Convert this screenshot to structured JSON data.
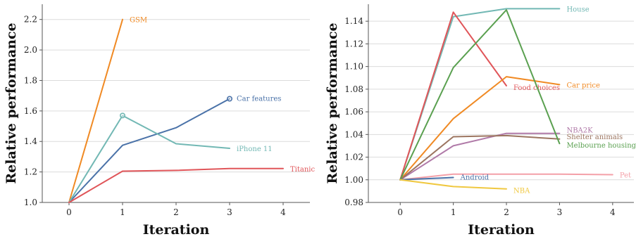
{
  "chart_data": [
    {
      "type": "line",
      "xlabel": "Iteration",
      "ylabel": "Relative performance",
      "xlim": [
        -0.5,
        4.5
      ],
      "ylim": [
        1.0,
        2.3
      ],
      "xticks": [
        0,
        1,
        2,
        3,
        4
      ],
      "yticks": [
        1.0,
        1.2,
        1.4,
        1.6,
        1.8,
        2.0,
        2.2
      ],
      "ytick_format": 1,
      "grid": "horizontal",
      "series": [
        {
          "name": "GSM",
          "color": "#f08a24",
          "x": [
            0,
            1
          ],
          "y": [
            1.0,
            2.2
          ]
        },
        {
          "name": "Car features",
          "color": "#4a72a8",
          "x": [
            0,
            1,
            2,
            3
          ],
          "y": [
            1.0,
            1.375,
            1.49,
            1.68
          ],
          "marker_last": true
        },
        {
          "name": "iPhone 11",
          "color": "#72b8b4",
          "x": [
            0,
            1,
            2,
            3
          ],
          "y": [
            1.0,
            1.57,
            1.385,
            1.355
          ],
          "marker_at": 1
        },
        {
          "name": "Titanic",
          "color": "#e05559",
          "x": [
            0,
            1,
            2,
            3,
            4
          ],
          "y": [
            1.0,
            1.205,
            1.21,
            1.222,
            1.222
          ]
        }
      ]
    },
    {
      "type": "line",
      "xlabel": "Iteration",
      "ylabel": "Relative performance",
      "xlim": [
        -0.6,
        4.4
      ],
      "ylim": [
        0.98,
        1.155
      ],
      "xticks": [
        0,
        1,
        2,
        3,
        4
      ],
      "yticks": [
        0.98,
        1.0,
        1.02,
        1.04,
        1.06,
        1.08,
        1.1,
        1.12,
        1.14
      ],
      "ytick_format": 2,
      "grid": "horizontal",
      "series": [
        {
          "name": "House",
          "color": "#72b8b4",
          "x": [
            0,
            1,
            2,
            3
          ],
          "y": [
            1.0,
            1.144,
            1.151,
            1.151
          ]
        },
        {
          "name": "Food choices",
          "color": "#e05559",
          "x": [
            0,
            1,
            2
          ],
          "y": [
            1.0,
            1.148,
            1.083
          ]
        },
        {
          "name": "Car price",
          "color": "#f08a24",
          "x": [
            0,
            1,
            2,
            3
          ],
          "y": [
            1.0,
            1.054,
            1.091,
            1.084
          ]
        },
        {
          "name": "NBA2K",
          "color": "#b07aa8",
          "x": [
            0,
            1,
            2,
            3
          ],
          "y": [
            1.0,
            1.03,
            1.041,
            1.041
          ]
        },
        {
          "name": "Shelter animals",
          "color": "#9c7560",
          "x": [
            0,
            1,
            2,
            3
          ],
          "y": [
            1.0,
            1.038,
            1.039,
            1.036
          ]
        },
        {
          "name": "Melbourne housing",
          "color": "#5aa050",
          "x": [
            0,
            1,
            2,
            3
          ],
          "y": [
            1.0,
            1.099,
            1.15,
            1.032
          ]
        },
        {
          "name": "Pet",
          "color": "#f4a0a8",
          "x": [
            0,
            1,
            2,
            3,
            4
          ],
          "y": [
            1.0,
            1.005,
            1.005,
            1.005,
            1.0045
          ]
        },
        {
          "name": "Android",
          "color": "#4a72a8",
          "x": [
            0,
            1
          ],
          "y": [
            1.0,
            1.002
          ]
        },
        {
          "name": "NBA",
          "color": "#f0c840",
          "x": [
            0,
            1,
            2
          ],
          "y": [
            1.0,
            0.994,
            0.992
          ]
        }
      ]
    }
  ]
}
